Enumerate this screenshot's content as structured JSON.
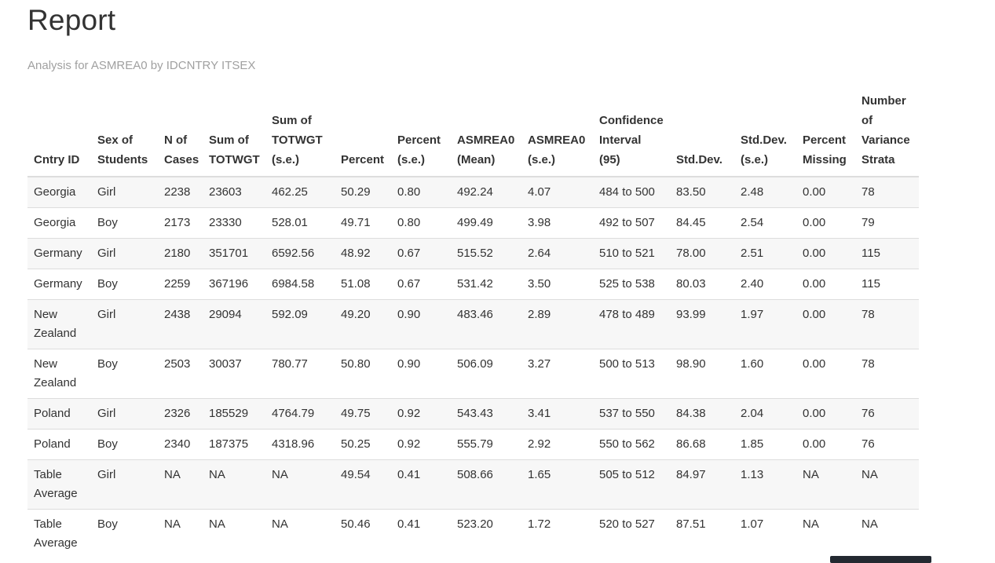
{
  "page": {
    "title": "Report",
    "subtitle": "Analysis for ASMREA0 by IDCNTRY ITSEX"
  },
  "table": {
    "columns": [
      "Cntry ID",
      "Sex of Students",
      "N of Cases",
      "Sum of TOTWGT",
      "Sum of TOTWGT (s.e.)",
      "Percent",
      "Percent (s.e.)",
      "ASMREA0 (Mean)",
      "ASMREA0 (s.e.)",
      "Confidence Interval (95)",
      "Std.Dev.",
      "Std.Dev. (s.e.)",
      "Percent Missing",
      "Number of Variance Strata"
    ],
    "rows": [
      [
        "Georgia",
        "Girl",
        "2238",
        "23603",
        "462.25",
        "50.29",
        "0.80",
        "492.24",
        "4.07",
        "484 to 500",
        "83.50",
        "2.48",
        "0.00",
        "78"
      ],
      [
        "Georgia",
        "Boy",
        "2173",
        "23330",
        "528.01",
        "49.71",
        "0.80",
        "499.49",
        "3.98",
        "492 to 507",
        "84.45",
        "2.54",
        "0.00",
        "79"
      ],
      [
        "Germany",
        "Girl",
        "2180",
        "351701",
        "6592.56",
        "48.92",
        "0.67",
        "515.52",
        "2.64",
        "510 to 521",
        "78.00",
        "2.51",
        "0.00",
        "115"
      ],
      [
        "Germany",
        "Boy",
        "2259",
        "367196",
        "6984.58",
        "51.08",
        "0.67",
        "531.42",
        "3.50",
        "525 to 538",
        "80.03",
        "2.40",
        "0.00",
        "115"
      ],
      [
        "New Zealand",
        "Girl",
        "2438",
        "29094",
        "592.09",
        "49.20",
        "0.90",
        "483.46",
        "2.89",
        "478 to 489",
        "93.99",
        "1.97",
        "0.00",
        "78"
      ],
      [
        "New Zealand",
        "Boy",
        "2503",
        "30037",
        "780.77",
        "50.80",
        "0.90",
        "506.09",
        "3.27",
        "500 to 513",
        "98.90",
        "1.60",
        "0.00",
        "78"
      ],
      [
        "Poland",
        "Girl",
        "2326",
        "185529",
        "4764.79",
        "49.75",
        "0.92",
        "543.43",
        "3.41",
        "537 to 550",
        "84.38",
        "2.04",
        "0.00",
        "76"
      ],
      [
        "Poland",
        "Boy",
        "2340",
        "187375",
        "4318.96",
        "50.25",
        "0.92",
        "555.79",
        "2.92",
        "550 to 562",
        "86.68",
        "1.85",
        "0.00",
        "76"
      ],
      [
        "Table Average",
        "Girl",
        "NA",
        "NA",
        "NA",
        "49.54",
        "0.41",
        "508.66",
        "1.65",
        "505 to 512",
        "84.97",
        "1.13",
        "NA",
        "NA"
      ],
      [
        "Table Average",
        "Boy",
        "NA",
        "NA",
        "NA",
        "50.46",
        "0.41",
        "523.20",
        "1.72",
        "520 to 527",
        "87.51",
        "1.07",
        "NA",
        "NA"
      ]
    ]
  },
  "colors": {
    "title": "#333333",
    "subtitle": "#a0a0a0",
    "text": "#333333",
    "stripe": "#f7f7f7",
    "border": "#dddddd",
    "scrollbar_thumb": "#232931"
  }
}
